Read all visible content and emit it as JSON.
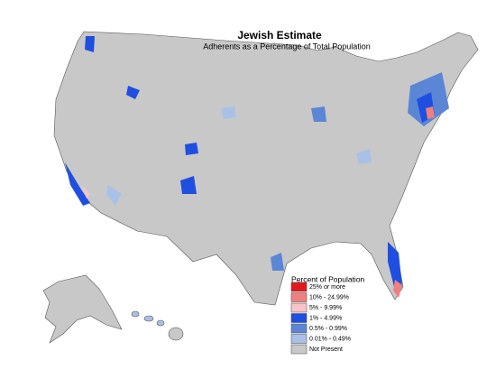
{
  "title": "Jewish Estimate",
  "subtitle": "Adherents as a Percentage of Total Population",
  "legend": {
    "title": "Percent of Population",
    "items": [
      {
        "label": "25% or more",
        "color": "#e31a1c"
      },
      {
        "label": "10% - 24.99%",
        "color": "#f08080"
      },
      {
        "label": "5% - 9.99%",
        "color": "#f6c3cb"
      },
      {
        "label": "1% - 4.99%",
        "color": "#1f4fe0"
      },
      {
        "label": "0.5% - 0.99%",
        "color": "#5b86d6"
      },
      {
        "label": "0.01% - 0.49%",
        "color": "#a9c1e6"
      },
      {
        "label": "Not Present",
        "color": "#c8c8c8"
      }
    ]
  }
}
